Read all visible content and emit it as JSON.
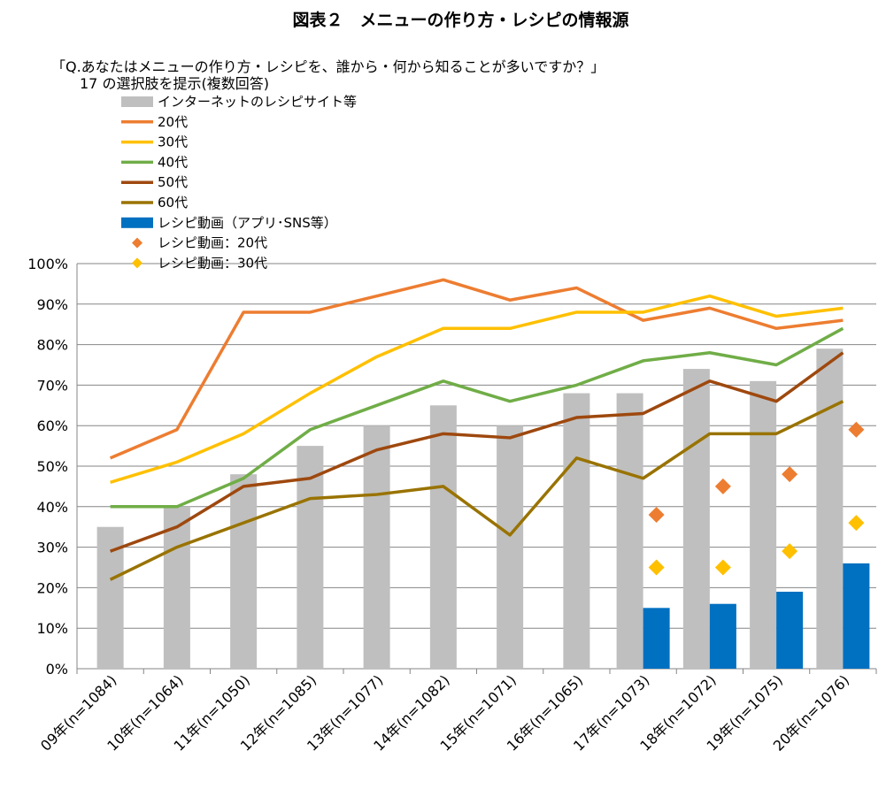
{
  "chart_data": {
    "type": "bar+line",
    "title": "図表２　メニューの作り方・レシピの情報源",
    "subtitle": "「Q.あなたはメニューの作り方・レシピを、誰から・何から知ることが多いですか？」",
    "note": "17 の選択肢を提示(複数回答)",
    "categories": [
      "09年(n=1084)",
      "10年(n=1064)",
      "11年(n=1050)",
      "12年(n=1085)",
      "13年(n=1077)",
      "14年(n=1082)",
      "15年(n=1071)",
      "16年(n=1065)",
      "17年(n=1073)",
      "18年(n=1072)",
      "19年(n=1075)",
      "20年(n=1076)"
    ],
    "ylim": [
      0,
      100
    ],
    "yticks": [
      "0%",
      "10%",
      "20%",
      "30%",
      "40%",
      "50%",
      "60%",
      "70%",
      "80%",
      "90%",
      "100%"
    ],
    "grid": true,
    "legend_position": "top-left",
    "bars": [
      {
        "name": "インターネットのレシピサイト等",
        "color": "#bfbfbf",
        "values": [
          35,
          40,
          48,
          55,
          60,
          65,
          60,
          68,
          68,
          74,
          71,
          79
        ]
      },
      {
        "name": "レシピ動画（アプリ･SNS等）",
        "color": "#0070c0",
        "values": [
          null,
          null,
          null,
          null,
          null,
          null,
          null,
          null,
          15,
          16,
          19,
          26
        ]
      }
    ],
    "lines": [
      {
        "name": "20代",
        "color": "#ed7d31",
        "values": [
          52,
          59,
          88,
          88,
          92,
          96,
          91,
          94,
          86,
          89,
          84,
          86
        ]
      },
      {
        "name": "30代",
        "color": "#ffc000",
        "values": [
          46,
          51,
          58,
          68,
          77,
          84,
          84,
          88,
          88,
          92,
          87,
          89
        ]
      },
      {
        "name": "40代",
        "color": "#70ad47",
        "values": [
          40,
          40,
          47,
          59,
          65,
          71,
          66,
          70,
          76,
          78,
          75,
          84
        ]
      },
      {
        "name": "50代",
        "color": "#9e480e",
        "values": [
          29,
          35,
          45,
          47,
          54,
          58,
          57,
          62,
          63,
          71,
          66,
          78
        ]
      },
      {
        "name": "60代",
        "color": "#997300",
        "values": [
          22,
          30,
          36,
          42,
          43,
          45,
          33,
          52,
          47,
          58,
          58,
          66
        ]
      }
    ],
    "markers": [
      {
        "name": "レシピ動画：20代",
        "color": "#ed7d31",
        "values": [
          null,
          null,
          null,
          null,
          null,
          null,
          null,
          null,
          38,
          45,
          48,
          59
        ]
      },
      {
        "name": "レシピ動画：30代",
        "color": "#ffc000",
        "values": [
          null,
          null,
          null,
          null,
          null,
          null,
          null,
          null,
          25,
          25,
          29,
          36
        ]
      }
    ]
  }
}
